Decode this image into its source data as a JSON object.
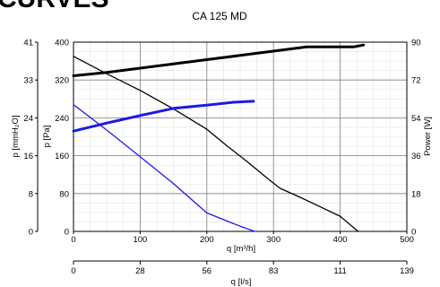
{
  "page_heading": "CURVES",
  "chart_data": {
    "type": "line",
    "title": "CA 125 MD",
    "grid": true,
    "x": {
      "label": "q [m³/h]",
      "range": [
        0,
        500
      ],
      "ticks": [
        0,
        100,
        200,
        300,
        400,
        500
      ],
      "minor_step": 25
    },
    "x_secondary": {
      "label": "q [l/s]",
      "ticks": [
        "0",
        "28",
        "56",
        "83",
        "111",
        "139"
      ]
    },
    "y_left": {
      "label": "p [Pa]",
      "range": [
        0,
        400
      ],
      "ticks": [
        0,
        80,
        160,
        240,
        320,
        400
      ],
      "minor_step": 20
    },
    "y_left_outer": {
      "label": "p [mmH₂O]",
      "ticks": [
        "0",
        "8",
        "16",
        "24",
        "33",
        "41"
      ]
    },
    "y_right": {
      "label": "Power [W]",
      "ticks": [
        "0",
        "18",
        "36",
        "54",
        "72",
        "90"
      ]
    },
    "series": [
      {
        "color": "#000000",
        "stroke": 3,
        "axis": "left",
        "points": [
          [
            0,
            329
          ],
          [
            50,
            336
          ],
          [
            100,
            345
          ],
          [
            150,
            354
          ],
          [
            200,
            363
          ],
          [
            250,
            372
          ],
          [
            300,
            381
          ],
          [
            350,
            390
          ],
          [
            390,
            390
          ],
          [
            420,
            390
          ],
          [
            435,
            394
          ]
        ]
      },
      {
        "color": "#000000",
        "stroke": 1.3,
        "axis": "left",
        "points": [
          [
            0,
            370
          ],
          [
            50,
            333
          ],
          [
            100,
            298
          ],
          [
            150,
            259
          ],
          [
            200,
            216
          ],
          [
            230,
            181
          ],
          [
            260,
            148
          ],
          [
            290,
            113
          ],
          [
            310,
            91
          ],
          [
            340,
            72
          ],
          [
            370,
            52
          ],
          [
            400,
            32
          ],
          [
            420,
            8
          ],
          [
            427,
            0
          ]
        ]
      },
      {
        "color": "#1a1ae6",
        "stroke": 3,
        "axis": "left",
        "points": [
          [
            0,
            212
          ],
          [
            50,
            229
          ],
          [
            100,
            245
          ],
          [
            150,
            260
          ],
          [
            200,
            267
          ],
          [
            240,
            273
          ],
          [
            270,
            275
          ]
        ]
      },
      {
        "color": "#1a1ae6",
        "stroke": 1.3,
        "axis": "left",
        "points": [
          [
            0,
            268
          ],
          [
            50,
            214
          ],
          [
            100,
            158
          ],
          [
            150,
            101
          ],
          [
            200,
            39
          ],
          [
            230,
            22
          ],
          [
            250,
            11
          ],
          [
            272,
            0
          ]
        ]
      }
    ]
  }
}
